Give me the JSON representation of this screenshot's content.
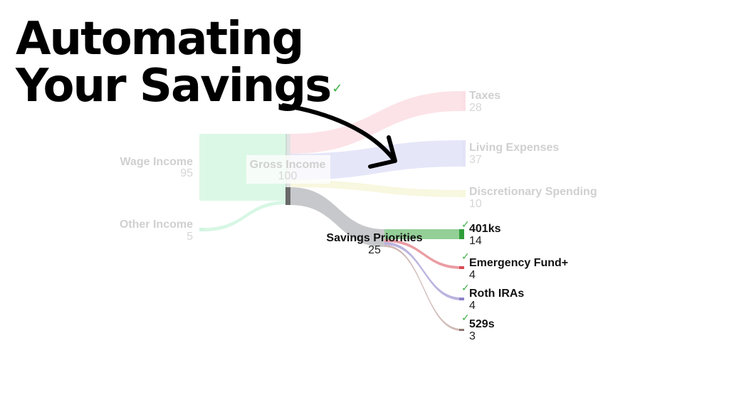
{
  "headline": {
    "line1": "Automating",
    "line2": "Your Savings",
    "check": "✓"
  },
  "sankey": {
    "nodes": {
      "wage": {
        "name": "Wage Income",
        "value": "95"
      },
      "other": {
        "name": "Other Income",
        "value": "5"
      },
      "gross": {
        "name": "Gross Income",
        "value": "100"
      },
      "taxes": {
        "name": "Taxes",
        "value": "28"
      },
      "living": {
        "name": "Living Expenses",
        "value": "37"
      },
      "discretionary": {
        "name": "Discretionary Spending",
        "value": "10"
      },
      "savings": {
        "name": "Savings Priorities",
        "value": "25"
      },
      "k401": {
        "name": "401ks",
        "value": "14",
        "check": "✓"
      },
      "emergency": {
        "name": "Emergency Fund+",
        "value": "4",
        "check": "✓"
      },
      "roth": {
        "name": "Roth IRAs",
        "value": "4",
        "check": "✓"
      },
      "s529": {
        "name": "529s",
        "value": "3",
        "check": "✓"
      }
    },
    "colors": {
      "wage": "#bdf2d2",
      "other": "#bdf2d2",
      "taxes": "#f7b9c3",
      "living": "#c6c8f0",
      "discretionary": "#f2f1c4",
      "savings": "#a9abaf",
      "k401": "#3aa842",
      "emergency": "#d94c57",
      "roth": "#8c82c9",
      "s529": "#b08c87",
      "arrow": "#000000"
    }
  }
}
